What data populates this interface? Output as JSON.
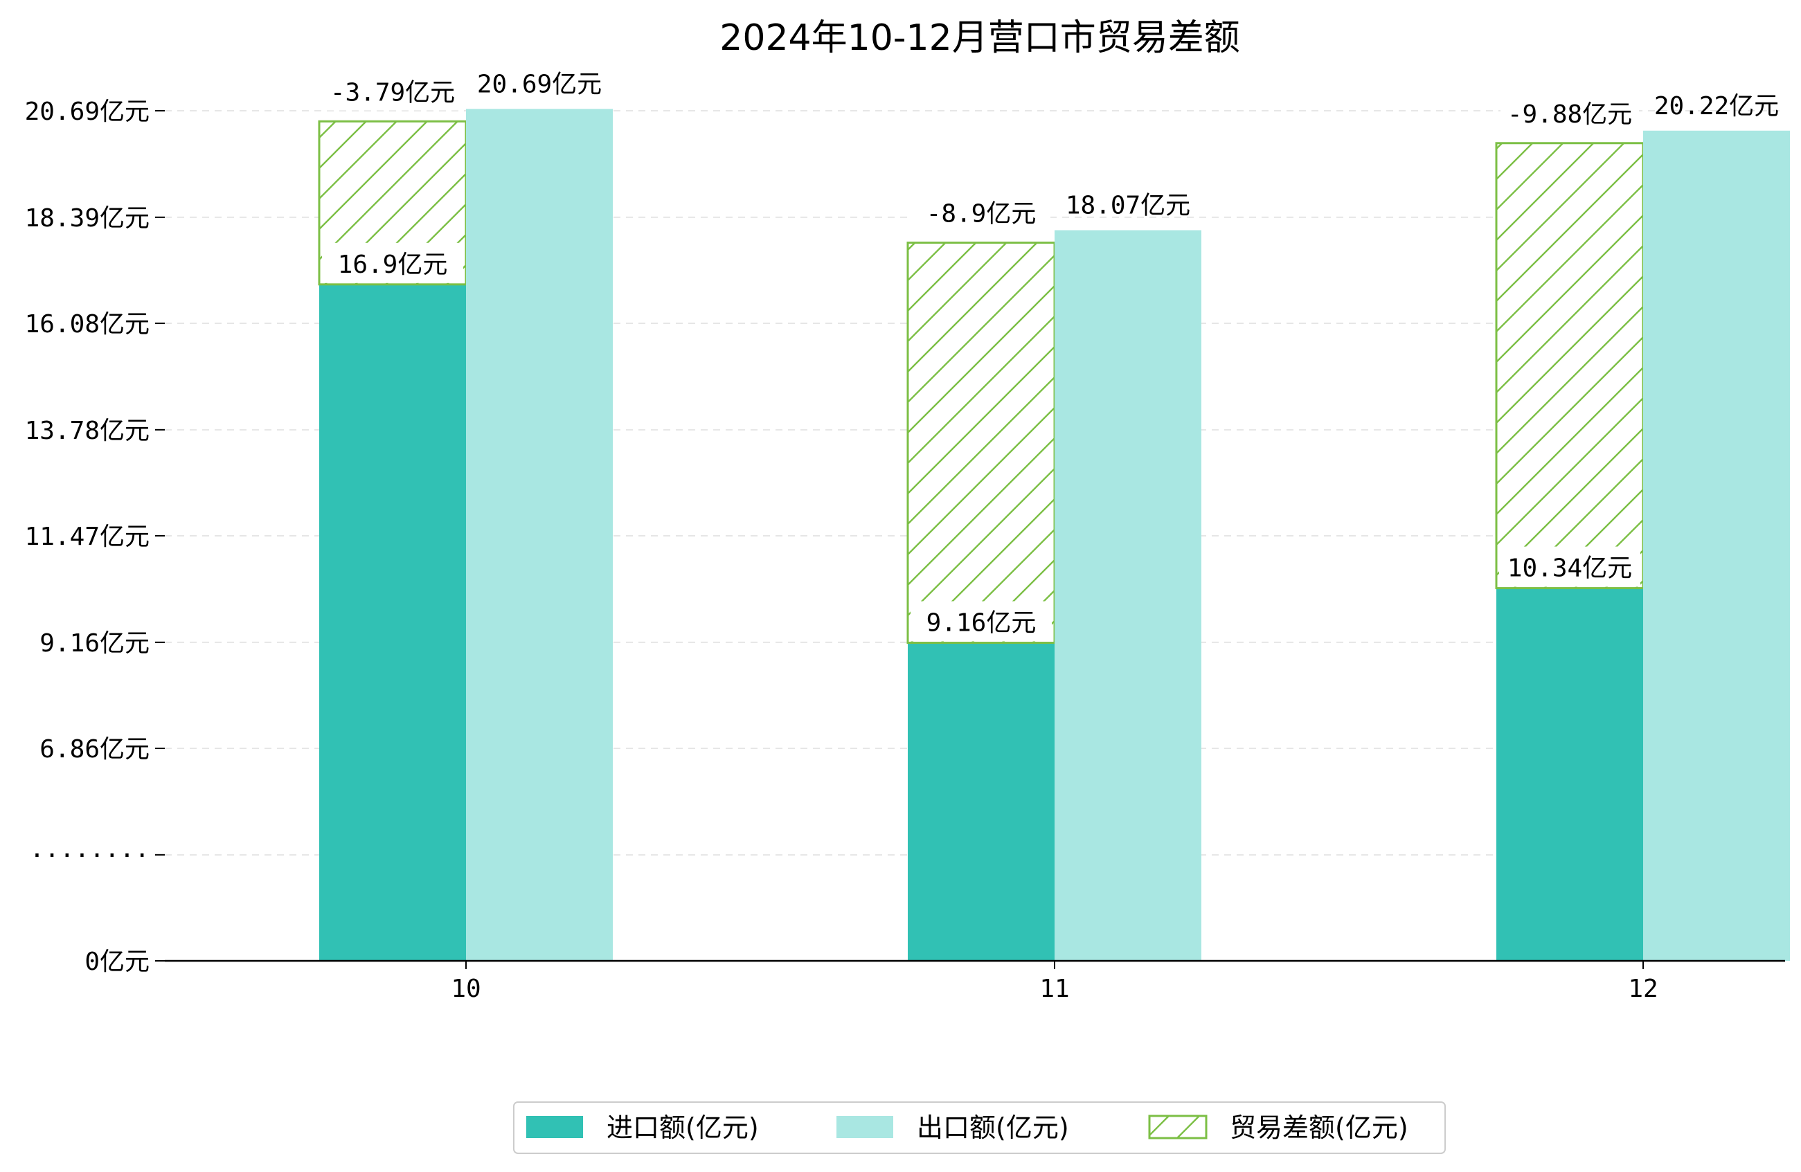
{
  "chart_data": {
    "type": "bar",
    "title": "2024年10-12月营口市贸易差额",
    "xlabel": "",
    "ylabel": "",
    "categories": [
      "10",
      "11",
      "12"
    ],
    "series": [
      {
        "name": "进口额(亿元)",
        "values": [
          16.9,
          9.16,
          10.34
        ],
        "labels": [
          "16.9亿元",
          "9.16亿元",
          "10.34亿元"
        ],
        "color": "#31c1b4"
      },
      {
        "name": "出口额(亿元)",
        "values": [
          20.69,
          18.07,
          20.22
        ],
        "labels": [
          "20.69亿元",
          "18.07亿元",
          "20.22亿元"
        ],
        "color": "#a9e7e2"
      },
      {
        "name": "贸易差额(亿元)",
        "values": [
          -3.79,
          -8.9,
          -9.88
        ],
        "labels": [
          "-3.79亿元",
          "-8.9亿元",
          "-9.88亿元"
        ],
        "color": "#7cbf45"
      }
    ],
    "y_ticks": [
      {
        "value": 0,
        "label": "0亿元"
      },
      {
        "value": 2.29,
        "label": "········"
      },
      {
        "value": 4.59,
        "label": "6.86亿元"
      },
      {
        "value": 6.88,
        "label": "9.16亿元"
      },
      {
        "value": 9.18,
        "label": "11.47亿元"
      },
      {
        "value": 11.47,
        "label": "13.78亿元"
      },
      {
        "value": 13.77,
        "label": "16.08亿元"
      },
      {
        "value": 16.06,
        "label": "18.39亿元"
      },
      {
        "value": 18.36,
        "label": "20.69亿元"
      }
    ],
    "axis_break": {
      "display_offset": 2.29,
      "note": "values above the break are drawn shifted down by display_offset"
    },
    "ylim": [
      0,
      18.9
    ],
    "grid": "horizontal dashed",
    "legend_position": "bottom-center"
  }
}
